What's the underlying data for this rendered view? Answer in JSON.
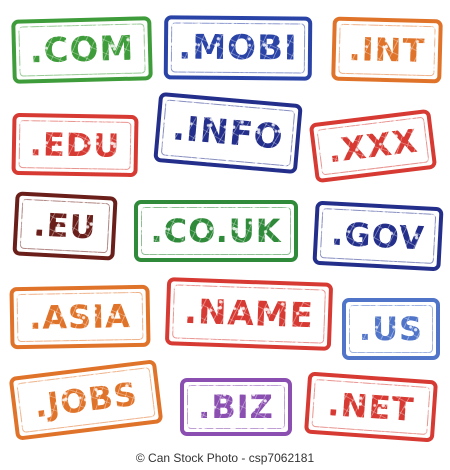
{
  "colors": {
    "green": "#3f9c3a",
    "blue": "#2a43a6",
    "orange": "#e0732a",
    "red": "#d63a32",
    "dark_red": "#6b1f1a",
    "navy": "#232f8a",
    "purple": "#8a4fb0",
    "mid_blue": "#4f74c8",
    "dark_green": "#2f8a3a"
  },
  "stamps": [
    {
      "label": ".COM",
      "color": "green"
    },
    {
      "label": ".MOBI",
      "color": "blue"
    },
    {
      "label": ".INT",
      "color": "orange"
    },
    {
      "label": ".EDU",
      "color": "red"
    },
    {
      "label": ".INFO",
      "color": "navy"
    },
    {
      "label": ".XXX",
      "color": "red"
    },
    {
      "label": ".EU",
      "color": "dark_red"
    },
    {
      "label": ".CO.UK",
      "color": "dark_green"
    },
    {
      "label": ".GOV",
      "color": "navy"
    },
    {
      "label": ".ASIA",
      "color": "orange"
    },
    {
      "label": ".NAME",
      "color": "red"
    },
    {
      "label": ".US",
      "color": "mid_blue"
    },
    {
      "label": ".JOBS",
      "color": "orange"
    },
    {
      "label": ".BIZ",
      "color": "purple"
    },
    {
      "label": ".NET",
      "color": "red"
    }
  ],
  "footer": {
    "copyright_symbol": "©",
    "credit_text": "Can Stock Photo - csp7062181"
  }
}
